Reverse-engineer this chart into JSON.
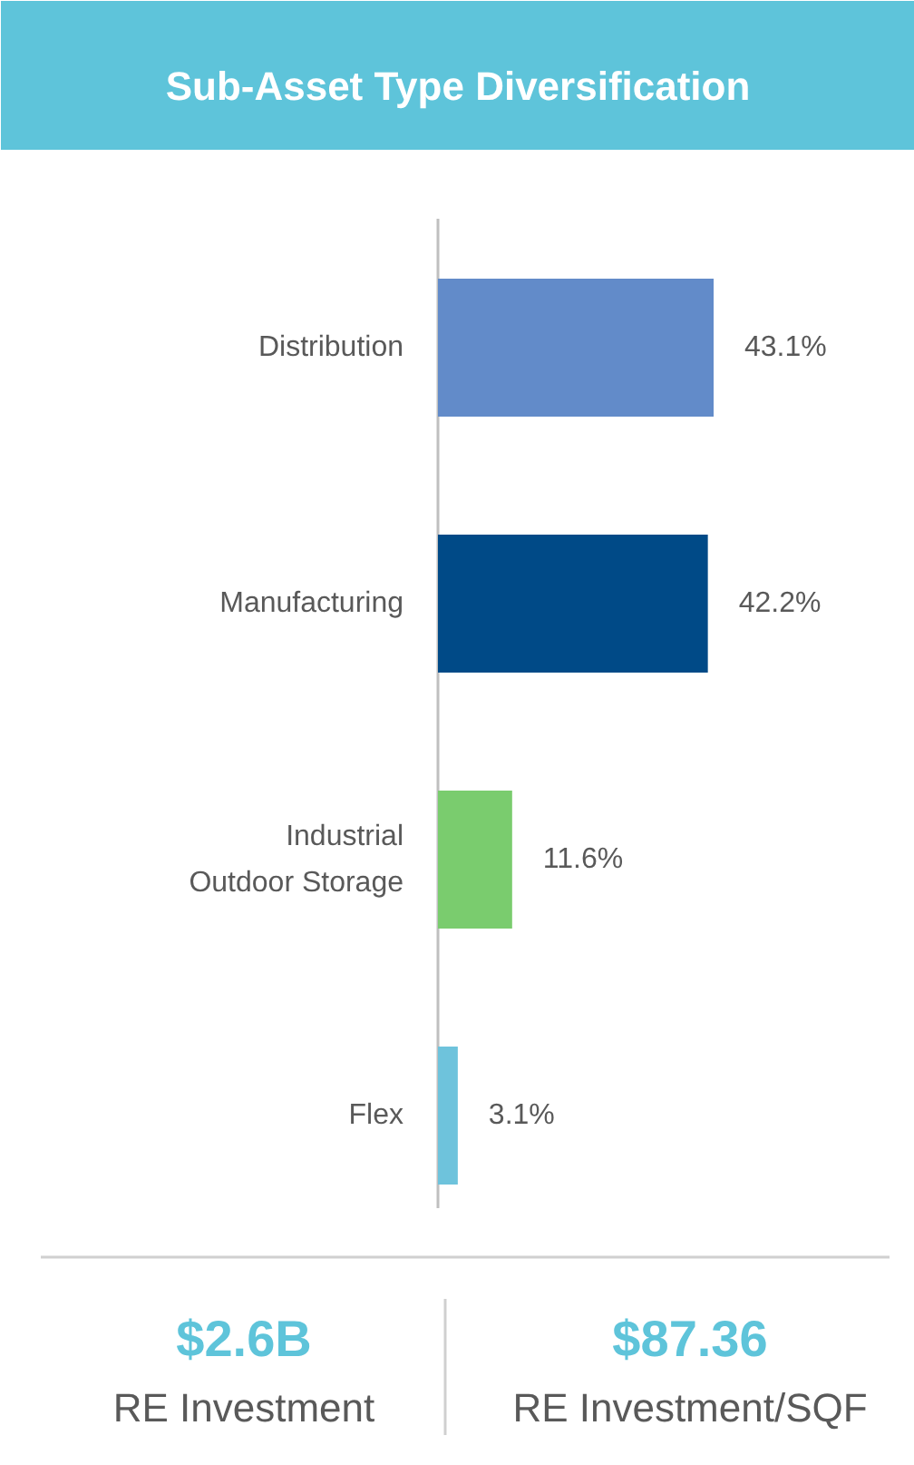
{
  "chart_data": {
    "type": "bar",
    "orientation": "horizontal",
    "title": "Sub-Asset Type Diversification",
    "categories": [
      "Distribution",
      "Manufacturing",
      "Industrial Outdoor Storage",
      "Flex"
    ],
    "values": [
      43.1,
      42.2,
      11.6,
      3.1
    ],
    "colors": [
      "#628bc9",
      "#004a87",
      "#7acc6e",
      "#6ec3dc"
    ],
    "value_labels": [
      "43.1%",
      "42.2%",
      "11.6%",
      "3.1%"
    ],
    "annotations": [
      "$2.6B",
      "RE Investment",
      "$87.36",
      "RE Investment/SQF"
    ]
  }
}
